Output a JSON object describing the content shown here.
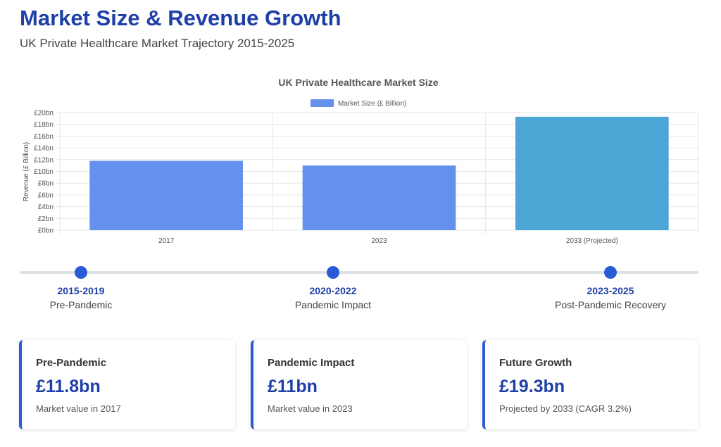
{
  "header": {
    "title": "Market Size & Revenue Growth",
    "subtitle": "UK Private Healthcare Market Trajectory 2015-2025"
  },
  "chart_data": {
    "type": "bar",
    "title": "UK Private Healthcare Market Size",
    "categories": [
      "2017",
      "2023",
      "2033 (Projected)"
    ],
    "series": [
      {
        "name": "Market Size (£ Billion)",
        "values": [
          11.8,
          11,
          19.3
        ]
      }
    ],
    "bar_colors": [
      "#6690ee",
      "#6690ee",
      "#4ba6d6"
    ],
    "legend_color": "#6690ee",
    "xlabel": "",
    "ylabel": "Revenue (£ Billion)",
    "ylim": [
      0,
      20
    ],
    "yticks": [
      0,
      2,
      4,
      6,
      8,
      10,
      12,
      14,
      16,
      18,
      20
    ],
    "ytick_labels": [
      "£0bn",
      "£2bn",
      "£4bn",
      "£6bn",
      "£8bn",
      "£10bn",
      "£12bn",
      "£14bn",
      "£16bn",
      "£18bn",
      "£20bn"
    ],
    "grid": true,
    "legend_position": "top"
  },
  "timeline": {
    "accent_color": "#2a5bd7",
    "milestones": [
      {
        "year": "2015-2019",
        "label": "Pre-Pandemic"
      },
      {
        "year": "2020-2022",
        "label": "Pandemic Impact"
      },
      {
        "year": "2023-2025",
        "label": "Post-Pandemic Recovery"
      }
    ]
  },
  "cards": [
    {
      "title": "Pre-Pandemic",
      "value": "£11.8bn",
      "description": "Market value in 2017"
    },
    {
      "title": "Pandemic Impact",
      "value": "£11bn",
      "description": "Market value in 2023"
    },
    {
      "title": "Future Growth",
      "value": "£19.3bn",
      "description": "Projected by 2033 (CAGR 3.2%)"
    }
  ]
}
